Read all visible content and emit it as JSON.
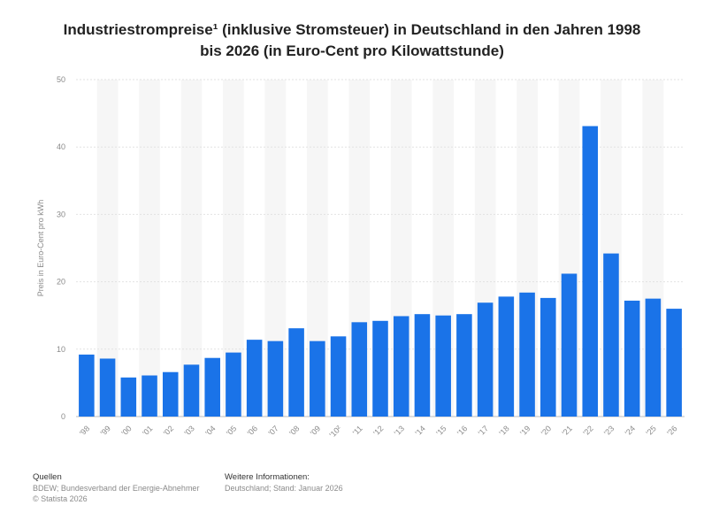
{
  "chart_data": {
    "type": "bar",
    "title_line1": "Industriestrompreise¹ (inklusive Stromsteuer) in Deutschland in den Jahren 1998",
    "title_line2": "bis 2026 (in Euro-Cent pro Kilowattstunde)",
    "ylabel": "Preis in Euro-Cent pro kWh",
    "xlabel": "",
    "ylim": [
      0,
      50
    ],
    "yticks": [
      0,
      10,
      20,
      30,
      40,
      50
    ],
    "grid": true,
    "bar_color": "#1a73e8",
    "categories": [
      "'98",
      "'99",
      "'00",
      "'01",
      "'02",
      "'03",
      "'04",
      "'05",
      "'06",
      "'07",
      "'08",
      "'09",
      "'10²",
      "'11",
      "'12",
      "'13",
      "'14",
      "'15",
      "'16",
      "'17",
      "'18",
      "'19",
      "'20",
      "'21",
      "'22",
      "'23",
      "'24",
      "'25",
      "'26"
    ],
    "values": [
      9.2,
      8.6,
      5.8,
      6.1,
      6.6,
      7.7,
      8.7,
      9.5,
      11.4,
      11.2,
      13.1,
      11.2,
      11.9,
      14.0,
      14.2,
      14.9,
      15.2,
      15.0,
      15.2,
      16.9,
      17.8,
      18.4,
      17.6,
      21.2,
      43.1,
      24.2,
      17.2,
      17.5,
      16.0
    ]
  },
  "footer": {
    "sources_heading": "Quellen",
    "sources_line1": "BDEW; Bundesverband der Energie-Abnehmer",
    "sources_line2": "© Statista 2026",
    "info_heading": "Weitere Informationen:",
    "info_line1": "Deutschland; Stand: Januar 2026"
  }
}
